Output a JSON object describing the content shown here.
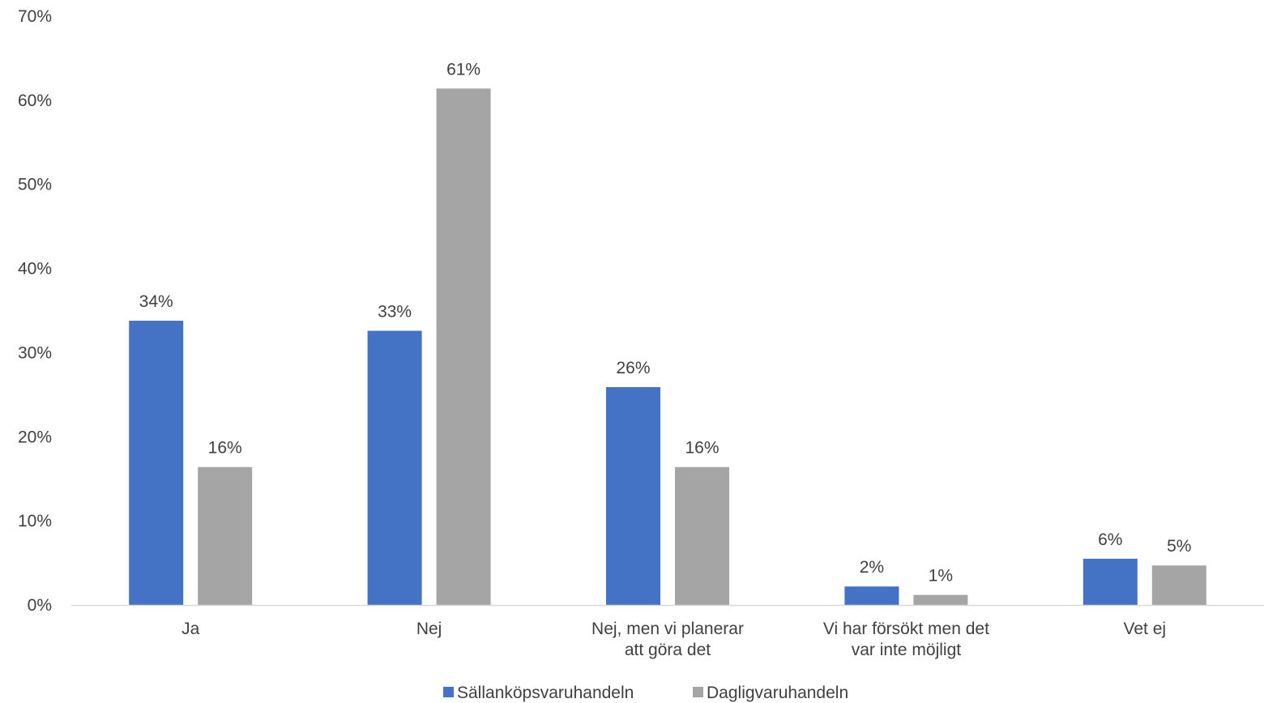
{
  "chart_data": {
    "type": "bar",
    "title": "",
    "xlabel": "",
    "ylabel": "",
    "categories": [
      [
        "Ja"
      ],
      [
        "Nej"
      ],
      [
        "Nej, men vi planerar",
        "att göra det"
      ],
      [
        "Vi har försökt men det",
        "var inte möjligt"
      ],
      [
        "Vet ej"
      ]
    ],
    "series": [
      {
        "name": "Sällanköpsvaruhandeln",
        "color": "#4472c4",
        "values": [
          33.8,
          32.6,
          25.9,
          2.2,
          5.5
        ],
        "labels": [
          "34%",
          "33%",
          "26%",
          "2%",
          "6%"
        ]
      },
      {
        "name": "Dagligvaruhandeln",
        "color": "#a5a5a5",
        "values": [
          16.4,
          61.4,
          16.4,
          1.2,
          4.7
        ],
        "labels": [
          "16%",
          "61%",
          "16%",
          "1%",
          "5%"
        ]
      }
    ],
    "ylim": [
      0,
      70
    ],
    "yticks": [
      0,
      10,
      20,
      30,
      40,
      50,
      60,
      70
    ],
    "ytick_labels": [
      "0%",
      "10%",
      "20%",
      "30%",
      "40%",
      "50%",
      "60%",
      "70%"
    ],
    "grid": false,
    "legend_position": "bottom",
    "axis_color": "#d9d9d9",
    "text_color": "#404040"
  }
}
